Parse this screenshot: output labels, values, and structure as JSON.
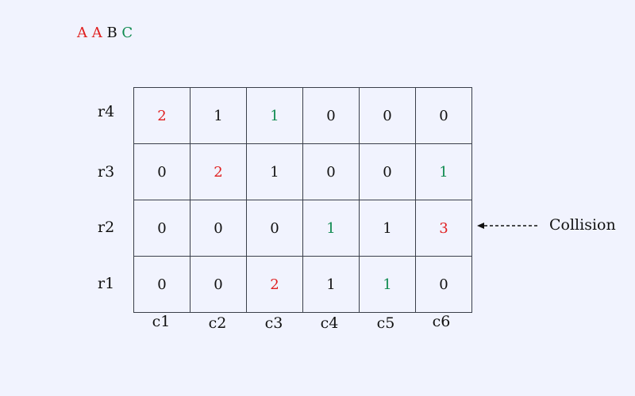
{
  "legend": [
    {
      "text": "A",
      "color": "#e02020"
    },
    {
      "text": "A",
      "color": "#e02020"
    },
    {
      "text": "B",
      "color": "#111111"
    },
    {
      "text": "C",
      "color": "#0e8a4f"
    }
  ],
  "row_labels": [
    "r4",
    "r3",
    "r2",
    "r1"
  ],
  "col_labels": [
    "c1",
    "c2",
    "c3",
    "c4",
    "c5",
    "c6"
  ],
  "grid": [
    [
      {
        "value": "2",
        "color": "#e02020"
      },
      {
        "value": "1",
        "color": "#111111"
      },
      {
        "value": "1",
        "color": "#0e8a4f"
      },
      {
        "value": "0",
        "color": "#111111"
      },
      {
        "value": "0",
        "color": "#111111"
      },
      {
        "value": "0",
        "color": "#111111"
      }
    ],
    [
      {
        "value": "0",
        "color": "#111111"
      },
      {
        "value": "2",
        "color": "#e02020"
      },
      {
        "value": "1",
        "color": "#111111"
      },
      {
        "value": "0",
        "color": "#111111"
      },
      {
        "value": "0",
        "color": "#111111"
      },
      {
        "value": "1",
        "color": "#0e8a4f"
      }
    ],
    [
      {
        "value": "0",
        "color": "#111111"
      },
      {
        "value": "0",
        "color": "#111111"
      },
      {
        "value": "0",
        "color": "#111111"
      },
      {
        "value": "1",
        "color": "#0e8a4f"
      },
      {
        "value": "1",
        "color": "#111111"
      },
      {
        "value": "3",
        "color": "#e02020"
      }
    ],
    [
      {
        "value": "0",
        "color": "#111111"
      },
      {
        "value": "0",
        "color": "#111111"
      },
      {
        "value": "2",
        "color": "#e02020"
      },
      {
        "value": "1",
        "color": "#111111"
      },
      {
        "value": "1",
        "color": "#0e8a4f"
      },
      {
        "value": "0",
        "color": "#111111"
      }
    ]
  ],
  "annotation": {
    "label": "Collision",
    "arrow": "left-dashed-arrow-icon",
    "row": "r2"
  },
  "colors": {
    "background": "#f1f3fe",
    "red": "#e02020",
    "green": "#0e8a4f",
    "black": "#111111"
  }
}
